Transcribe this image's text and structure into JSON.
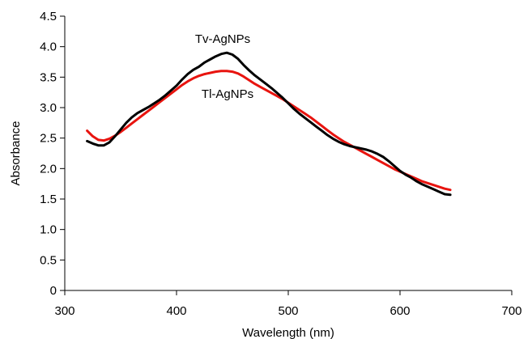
{
  "chart_data": {
    "type": "line",
    "title": "",
    "xlabel": "Wavelength (nm)",
    "ylabel": "Absorbance",
    "xlim": [
      300,
      700
    ],
    "ylim": [
      0,
      4.5
    ],
    "xticks": [
      300,
      400,
      500,
      600,
      700
    ],
    "yticks": [
      0,
      0.5,
      1.0,
      1.5,
      2.0,
      2.5,
      3.0,
      3.5,
      4.0,
      4.5
    ],
    "ytick_labels": [
      "0",
      "0.5",
      "1.0",
      "1.5",
      "2.0",
      "2.5",
      "3.0",
      "3.5",
      "4.0",
      "4.5"
    ],
    "xtick_labels": [
      "300",
      "400",
      "500",
      "600",
      "700"
    ],
    "grid": false,
    "legend": "none",
    "series": [
      {
        "name": "Tv-AgNPs",
        "color": "#000000",
        "x": [
          320,
          325,
          330,
          335,
          340,
          345,
          350,
          355,
          360,
          365,
          370,
          375,
          380,
          385,
          390,
          395,
          400,
          405,
          410,
          415,
          420,
          425,
          430,
          435,
          440,
          445,
          450,
          455,
          460,
          465,
          470,
          475,
          480,
          485,
          490,
          495,
          500,
          505,
          510,
          515,
          520,
          525,
          530,
          535,
          540,
          545,
          550,
          555,
          560,
          565,
          570,
          575,
          580,
          585,
          590,
          595,
          600,
          605,
          610,
          615,
          620,
          625,
          630,
          635,
          640,
          645
        ],
        "y": [
          2.45,
          2.41,
          2.38,
          2.38,
          2.43,
          2.53,
          2.64,
          2.75,
          2.84,
          2.91,
          2.96,
          3.01,
          3.07,
          3.13,
          3.2,
          3.28,
          3.36,
          3.46,
          3.55,
          3.62,
          3.67,
          3.74,
          3.79,
          3.84,
          3.88,
          3.9,
          3.87,
          3.8,
          3.7,
          3.61,
          3.53,
          3.46,
          3.39,
          3.32,
          3.24,
          3.16,
          3.07,
          2.98,
          2.9,
          2.83,
          2.76,
          2.69,
          2.62,
          2.55,
          2.49,
          2.44,
          2.4,
          2.37,
          2.35,
          2.33,
          2.31,
          2.28,
          2.24,
          2.19,
          2.12,
          2.04,
          1.96,
          1.9,
          1.85,
          1.79,
          1.74,
          1.7,
          1.66,
          1.62,
          1.58,
          1.57
        ]
      },
      {
        "name": "Tl-AgNPs",
        "color": "#e8140f",
        "x": [
          320,
          325,
          330,
          335,
          340,
          345,
          350,
          355,
          360,
          365,
          370,
          375,
          380,
          385,
          390,
          395,
          400,
          405,
          410,
          415,
          420,
          425,
          430,
          435,
          440,
          445,
          450,
          455,
          460,
          465,
          470,
          475,
          480,
          485,
          490,
          495,
          500,
          505,
          510,
          515,
          520,
          525,
          530,
          535,
          540,
          545,
          550,
          555,
          560,
          565,
          570,
          575,
          580,
          585,
          590,
          595,
          600,
          605,
          610,
          615,
          620,
          625,
          630,
          635,
          640,
          645
        ],
        "y": [
          2.62,
          2.53,
          2.47,
          2.46,
          2.49,
          2.54,
          2.6,
          2.67,
          2.74,
          2.81,
          2.88,
          2.95,
          3.02,
          3.09,
          3.16,
          3.23,
          3.3,
          3.37,
          3.43,
          3.48,
          3.52,
          3.55,
          3.57,
          3.59,
          3.6,
          3.6,
          3.59,
          3.56,
          3.51,
          3.45,
          3.39,
          3.34,
          3.29,
          3.24,
          3.19,
          3.14,
          3.08,
          3.02,
          2.96,
          2.9,
          2.84,
          2.77,
          2.7,
          2.63,
          2.56,
          2.5,
          2.44,
          2.39,
          2.34,
          2.29,
          2.24,
          2.19,
          2.14,
          2.09,
          2.04,
          1.99,
          1.95,
          1.91,
          1.87,
          1.83,
          1.79,
          1.76,
          1.73,
          1.7,
          1.67,
          1.65
        ]
      }
    ]
  }
}
